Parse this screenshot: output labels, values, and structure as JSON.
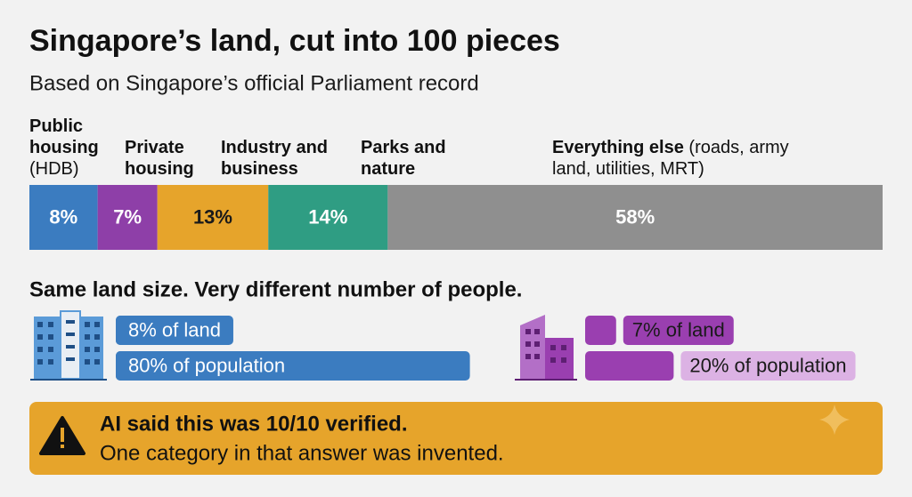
{
  "chart_data": {
    "type": "stacked-bar",
    "title": "Singapore’s land, cut into 100 pieces",
    "subtitle": "Based on Singapore’s official Parliament record",
    "xlim": [
      0,
      100
    ],
    "series": [
      {
        "name": "Public housing (HDB)",
        "color": "#3b7cc0",
        "label_color": "#ffffff",
        "values": [
          8
        ],
        "value_labels": [
          "8%"
        ]
      },
      {
        "name": "Private housing",
        "color": "#8e3fa8",
        "label_color": "#ffffff",
        "values": [
          7
        ],
        "value_labels": [
          "7%"
        ]
      },
      {
        "name": "Industry and business",
        "color": "#e6a42b",
        "label_color": "#1a1a1a",
        "values": [
          13
        ],
        "value_labels": [
          "13%"
        ]
      },
      {
        "name": "Parks and nature",
        "color": "#2f9d83",
        "label_color": "#ffffff",
        "values": [
          14
        ],
        "value_labels": [
          "14%"
        ]
      },
      {
        "name": "Everything else (roads, army land, utilities, MRT)",
        "color": "#8f8f8f",
        "label_color": "#ffffff",
        "values": [
          58
        ],
        "value_labels": [
          "58%"
        ]
      }
    ]
  },
  "comparison": {
    "title": "Same land size. Very different number of people.",
    "xlim": [
      0,
      100
    ],
    "groups": [
      {
        "color": "#3b7cc0",
        "pill_color": "#3b7cc0",
        "text_color": "#ffffff",
        "items": [
          {
            "label": "8% of land",
            "value": 8
          },
          {
            "label": "80% of population",
            "value": 80
          }
        ]
      },
      {
        "color": "#9a3fb0",
        "pill_color": "#dcb2e4",
        "text_color": "#1a1a1a",
        "items": [
          {
            "label": "7% of land",
            "value": 7
          },
          {
            "label": "20% of population",
            "value": 20
          }
        ]
      }
    ]
  },
  "warning": {
    "title": "AI said this was 10/10 verified.",
    "text": "One category in that answer was invented."
  }
}
